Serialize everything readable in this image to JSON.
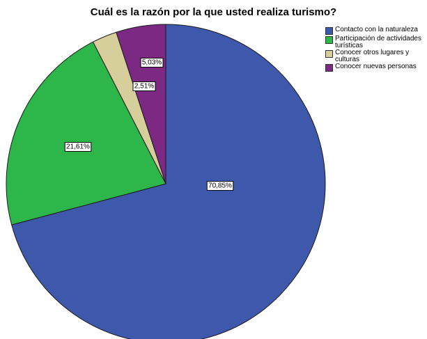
{
  "chart_data": {
    "type": "pie",
    "title": "Cuál es la razón por la que usted realiza turismo?",
    "legend_position": "top-right",
    "slices": [
      {
        "label": "Contacto con la naturaleza",
        "value": 70.85,
        "value_label": "70,85%",
        "color": "#3e58ac"
      },
      {
        "label": "Participación de actividades turísticas",
        "value": 21.61,
        "value_label": "21,61%",
        "color": "#2db74a"
      },
      {
        "label": "Conocer otros lugares y culturas",
        "value": 2.51,
        "value_label": "2,51%",
        "color": "#d6cf9c"
      },
      {
        "label": "Conocer nuevas personas",
        "value": 5.03,
        "value_label": "5,03%",
        "color": "#7b2982"
      }
    ]
  }
}
